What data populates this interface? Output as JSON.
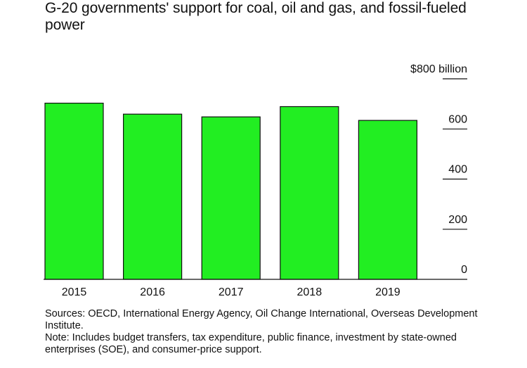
{
  "chart_data": {
    "type": "bar",
    "title": "G-20 governments' support for coal, oil and gas, and fossil-fueled power",
    "categories": [
      "2015",
      "2016",
      "2017",
      "2018",
      "2019"
    ],
    "values": [
      703,
      659,
      648,
      689,
      634
    ],
    "ylim": [
      0,
      800
    ],
    "y_ticks": [
      {
        "value": 800,
        "label": "$800 billion"
      },
      {
        "value": 600,
        "label": "600"
      },
      {
        "value": 400,
        "label": "400"
      },
      {
        "value": 200,
        "label": "200"
      },
      {
        "value": 0,
        "label": "0"
      }
    ],
    "bar_color": "#22ee22",
    "axis_side": "right",
    "grid": false,
    "xlabel": "",
    "ylabel": ""
  },
  "footnotes": {
    "sources": "Sources: OECD, International Energy Agency, Oil Change International, Overseas Development Institute.",
    "note": "Note: Includes budget transfers, tax expenditure, public finance, investment by state-owned enterprises (SOE), and consumer-price support."
  }
}
